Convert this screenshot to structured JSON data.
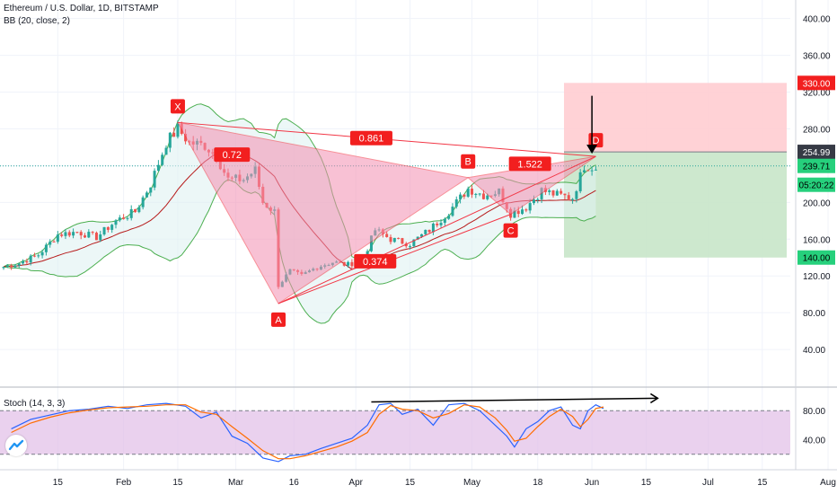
{
  "header": {
    "symbol_line": "Ethereum / U.S. Dollar, 1D, BITSTAMP",
    "indicator_line": "BB (20, close, 2)",
    "stoch_line": "Stoch (14, 3, 3)"
  },
  "colors": {
    "up_candle": "#26a69a",
    "down_candle": "#ef5350",
    "pattern_fill": "#f48fb1",
    "pattern_line": "#f23645",
    "stop_zone": "#ffcdd2",
    "target_zone": "#c8e6c9",
    "bb_line": "#4caf50",
    "stoch_k": "#2962ff",
    "stoch_d": "#ff6d00",
    "stoch_band": "#e1bee7"
  },
  "chart_data": [
    {
      "type": "candlestick",
      "title": "Ethereum / U.S. Dollar, 1D, BITSTAMP",
      "indicator": "BB (20, close, 2)",
      "ylim": [
        0,
        430
      ],
      "y_ticks": [
        40,
        80,
        120,
        160,
        200,
        240,
        280,
        320,
        360,
        400
      ],
      "y_tick_labels": [
        "40.00",
        "80.00",
        "120.00",
        "160.00",
        "200.00",
        "240.00",
        "280.00",
        "320.00",
        "360.00",
        "400.00"
      ],
      "x_tick_labels": [
        "15",
        "Feb",
        "15",
        "Mar",
        "16",
        "Apr",
        "15",
        "May",
        "18",
        "Jun",
        "15",
        "Jul",
        "15",
        "Aug"
      ],
      "x_tick_dates": [
        "2020-01-15",
        "2020-02-01",
        "2020-02-15",
        "2020-03-01",
        "2020-03-16",
        "2020-04-01",
        "2020-04-15",
        "2020-05-01",
        "2020-05-18",
        "2020-06-01",
        "2020-06-15",
        "2020-07-01",
        "2020-07-15",
        "2020-08-01"
      ],
      "price_labels": {
        "stop": "330.00",
        "entry": "254.99",
        "last": "239.71",
        "countdown": "05:20:22",
        "target": "140.00"
      },
      "levels": {
        "stop": 330,
        "entry": 254.99,
        "last": 239.71,
        "target": 140
      },
      "harmonic_points": [
        {
          "label": "X",
          "date": "2020-02-15",
          "price": 287
        },
        {
          "label": "A",
          "date": "2020-03-12",
          "price": 90
        },
        {
          "label": "B",
          "date": "2020-04-30",
          "price": 227
        },
        {
          "label": "C",
          "date": "2020-05-11",
          "price": 187
        },
        {
          "label": "D",
          "date": "2020-06-02",
          "price": 250
        }
      ],
      "ratios": [
        {
          "label": "0.72",
          "date": "2020-02-29",
          "price": 252
        },
        {
          "label": "0.861",
          "date": "2020-04-05",
          "price": 270
        },
        {
          "label": "0.374",
          "date": "2020-04-06",
          "price": 136
        },
        {
          "label": "1.522",
          "date": "2020-05-16",
          "price": 242
        }
      ],
      "arrow": {
        "date": "2020-06-01",
        "from_price": 316,
        "to_price": 253
      },
      "closes": [
        {
          "date": "2020-01-01",
          "close": 130
        },
        {
          "date": "2020-01-05",
          "close": 134
        },
        {
          "date": "2020-01-10",
          "close": 143
        },
        {
          "date": "2020-01-15",
          "close": 165
        },
        {
          "date": "2020-01-20",
          "close": 168
        },
        {
          "date": "2020-01-25",
          "close": 162
        },
        {
          "date": "2020-01-30",
          "close": 180
        },
        {
          "date": "2020-02-04",
          "close": 190
        },
        {
          "date": "2020-02-08",
          "close": 220
        },
        {
          "date": "2020-02-12",
          "close": 265
        },
        {
          "date": "2020-02-15",
          "close": 280
        },
        {
          "date": "2020-02-18",
          "close": 265
        },
        {
          "date": "2020-02-22",
          "close": 262
        },
        {
          "date": "2020-02-25",
          "close": 250
        },
        {
          "date": "2020-02-28",
          "close": 225
        },
        {
          "date": "2020-03-03",
          "close": 225
        },
        {
          "date": "2020-03-06",
          "close": 235
        },
        {
          "date": "2020-03-08",
          "close": 200
        },
        {
          "date": "2020-03-11",
          "close": 190
        },
        {
          "date": "2020-03-12",
          "close": 110
        },
        {
          "date": "2020-03-15",
          "close": 125
        },
        {
          "date": "2020-03-18",
          "close": 120
        },
        {
          "date": "2020-03-22",
          "close": 130
        },
        {
          "date": "2020-03-26",
          "close": 135
        },
        {
          "date": "2020-03-30",
          "close": 132
        },
        {
          "date": "2020-04-03",
          "close": 140
        },
        {
          "date": "2020-04-06",
          "close": 170
        },
        {
          "date": "2020-04-10",
          "close": 160
        },
        {
          "date": "2020-04-15",
          "close": 155
        },
        {
          "date": "2020-04-20",
          "close": 170
        },
        {
          "date": "2020-04-25",
          "close": 190
        },
        {
          "date": "2020-04-30",
          "close": 215
        },
        {
          "date": "2020-05-04",
          "close": 208
        },
        {
          "date": "2020-05-08",
          "close": 212
        },
        {
          "date": "2020-05-11",
          "close": 188
        },
        {
          "date": "2020-05-15",
          "close": 195
        },
        {
          "date": "2020-05-19",
          "close": 213
        },
        {
          "date": "2020-05-23",
          "close": 208
        },
        {
          "date": "2020-05-27",
          "close": 205
        },
        {
          "date": "2020-05-30",
          "close": 240
        },
        {
          "date": "2020-06-02",
          "close": 238
        }
      ]
    },
    {
      "type": "line",
      "title": "Stoch (14, 3, 3)",
      "ylim": [
        0,
        100
      ],
      "y_ticks": [
        40,
        80
      ],
      "y_tick_labels": [
        "40.00",
        "80.00"
      ],
      "band": [
        20,
        80
      ],
      "divergence_line": {
        "from_date": "2020-04-05",
        "from_value": 92,
        "to_date": "2020-06-18",
        "to_value": 97
      },
      "series": [
        {
          "key": "k",
          "values": [
            {
              "date": "2020-01-03",
              "value": 55
            },
            {
              "date": "2020-01-08",
              "value": 68
            },
            {
              "date": "2020-01-13",
              "value": 74
            },
            {
              "date": "2020-01-18",
              "value": 80
            },
            {
              "date": "2020-01-23",
              "value": 82
            },
            {
              "date": "2020-01-28",
              "value": 86
            },
            {
              "date": "2020-02-02",
              "value": 83
            },
            {
              "date": "2020-02-07",
              "value": 88
            },
            {
              "date": "2020-02-12",
              "value": 90
            },
            {
              "date": "2020-02-17",
              "value": 86
            },
            {
              "date": "2020-02-21",
              "value": 70
            },
            {
              "date": "2020-02-25",
              "value": 78
            },
            {
              "date": "2020-02-29",
              "value": 45
            },
            {
              "date": "2020-03-04",
              "value": 35
            },
            {
              "date": "2020-03-08",
              "value": 15
            },
            {
              "date": "2020-03-12",
              "value": 10
            },
            {
              "date": "2020-03-15",
              "value": 18
            },
            {
              "date": "2020-03-19",
              "value": 20
            },
            {
              "date": "2020-03-23",
              "value": 28
            },
            {
              "date": "2020-03-27",
              "value": 35
            },
            {
              "date": "2020-03-31",
              "value": 42
            },
            {
              "date": "2020-04-04",
              "value": 60
            },
            {
              "date": "2020-04-07",
              "value": 88
            },
            {
              "date": "2020-04-10",
              "value": 90
            },
            {
              "date": "2020-04-13",
              "value": 75
            },
            {
              "date": "2020-04-17",
              "value": 82
            },
            {
              "date": "2020-04-21",
              "value": 60
            },
            {
              "date": "2020-04-25",
              "value": 88
            },
            {
              "date": "2020-04-29",
              "value": 90
            },
            {
              "date": "2020-05-03",
              "value": 80
            },
            {
              "date": "2020-05-07",
              "value": 60
            },
            {
              "date": "2020-05-10",
              "value": 45
            },
            {
              "date": "2020-05-12",
              "value": 30
            },
            {
              "date": "2020-05-15",
              "value": 55
            },
            {
              "date": "2020-05-18",
              "value": 65
            },
            {
              "date": "2020-05-21",
              "value": 80
            },
            {
              "date": "2020-05-24",
              "value": 85
            },
            {
              "date": "2020-05-27",
              "value": 60
            },
            {
              "date": "2020-05-29",
              "value": 55
            },
            {
              "date": "2020-05-31",
              "value": 80
            },
            {
              "date": "2020-06-02",
              "value": 88
            },
            {
              "date": "2020-06-04",
              "value": 83
            }
          ]
        },
        {
          "key": "d",
          "values": [
            {
              "date": "2020-01-03",
              "value": 50
            },
            {
              "date": "2020-01-08",
              "value": 63
            },
            {
              "date": "2020-01-13",
              "value": 71
            },
            {
              "date": "2020-01-18",
              "value": 77
            },
            {
              "date": "2020-01-23",
              "value": 81
            },
            {
              "date": "2020-01-28",
              "value": 84
            },
            {
              "date": "2020-02-02",
              "value": 85
            },
            {
              "date": "2020-02-07",
              "value": 86
            },
            {
              "date": "2020-02-12",
              "value": 88
            },
            {
              "date": "2020-02-17",
              "value": 88
            },
            {
              "date": "2020-02-21",
              "value": 78
            },
            {
              "date": "2020-02-25",
              "value": 75
            },
            {
              "date": "2020-02-29",
              "value": 58
            },
            {
              "date": "2020-03-04",
              "value": 42
            },
            {
              "date": "2020-03-08",
              "value": 25
            },
            {
              "date": "2020-03-12",
              "value": 14
            },
            {
              "date": "2020-03-15",
              "value": 14
            },
            {
              "date": "2020-03-19",
              "value": 18
            },
            {
              "date": "2020-03-23",
              "value": 24
            },
            {
              "date": "2020-03-27",
              "value": 30
            },
            {
              "date": "2020-03-31",
              "value": 38
            },
            {
              "date": "2020-04-04",
              "value": 50
            },
            {
              "date": "2020-04-07",
              "value": 75
            },
            {
              "date": "2020-04-10",
              "value": 87
            },
            {
              "date": "2020-04-13",
              "value": 82
            },
            {
              "date": "2020-04-17",
              "value": 80
            },
            {
              "date": "2020-04-21",
              "value": 70
            },
            {
              "date": "2020-04-25",
              "value": 76
            },
            {
              "date": "2020-04-29",
              "value": 88
            },
            {
              "date": "2020-05-03",
              "value": 85
            },
            {
              "date": "2020-05-07",
              "value": 70
            },
            {
              "date": "2020-05-10",
              "value": 53
            },
            {
              "date": "2020-05-12",
              "value": 38
            },
            {
              "date": "2020-05-15",
              "value": 42
            },
            {
              "date": "2020-05-18",
              "value": 58
            },
            {
              "date": "2020-05-21",
              "value": 72
            },
            {
              "date": "2020-05-24",
              "value": 82
            },
            {
              "date": "2020-05-27",
              "value": 72
            },
            {
              "date": "2020-05-29",
              "value": 58
            },
            {
              "date": "2020-05-31",
              "value": 68
            },
            {
              "date": "2020-06-02",
              "value": 83
            },
            {
              "date": "2020-06-04",
              "value": 85
            }
          ]
        }
      ]
    }
  ]
}
